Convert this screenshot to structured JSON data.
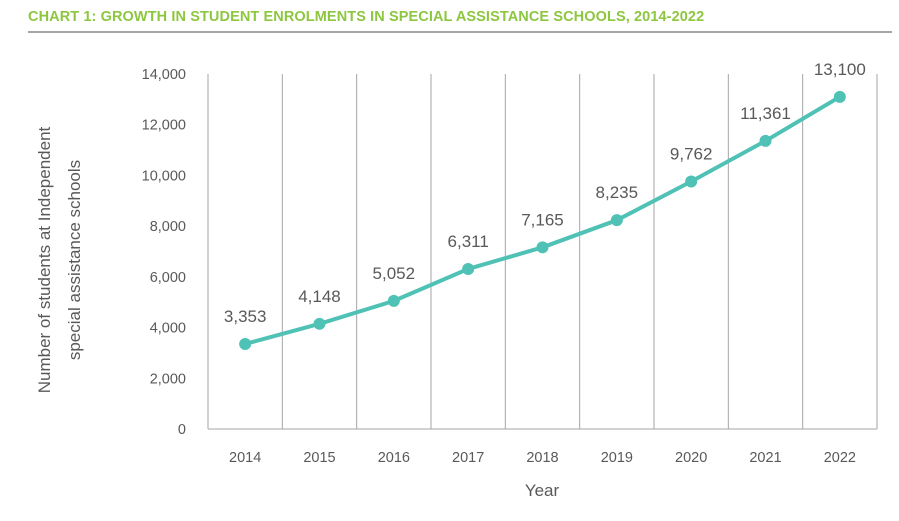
{
  "chart_data": {
    "type": "line",
    "title": "CHART 1: GROWTH IN STUDENT ENROLMENTS IN SPECIAL ASSISTANCE SCHOOLS, 2014-2022",
    "xlabel": "Year",
    "ylabel_lines": [
      "Number of students at Independent",
      "special assistance schools"
    ],
    "categories": [
      "2014",
      "2015",
      "2016",
      "2017",
      "2018",
      "2019",
      "2020",
      "2021",
      "2022"
    ],
    "series": [
      {
        "name": "Students",
        "values": [
          3353,
          4148,
          5052,
          6311,
          7165,
          8235,
          9762,
          11361,
          13100
        ],
        "labels": [
          "3,353",
          "4,148",
          "5,052",
          "6,311",
          "7,165",
          "8,235",
          "9,762",
          "11,361",
          "13,100"
        ]
      }
    ],
    "yticks": [
      0,
      2000,
      4000,
      6000,
      8000,
      10000,
      12000,
      14000
    ],
    "ytick_labels": [
      "0",
      "2,000",
      "4,000",
      "6,000",
      "8,000",
      "10,000",
      "12,000",
      "14,000"
    ],
    "ylim": [
      0,
      14000
    ],
    "grid": "vertical",
    "legend": "none",
    "colors": {
      "line": "#4fc1b5",
      "title": "#8dc63f",
      "grid": "#a6a6a6",
      "text": "#595959"
    }
  }
}
